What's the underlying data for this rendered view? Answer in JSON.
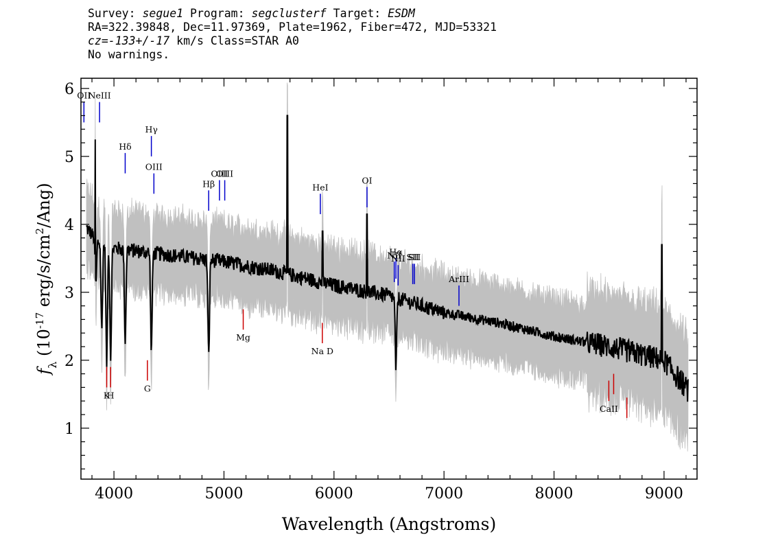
{
  "header": {
    "line1": {
      "survey_label": "Survey: ",
      "survey": "segue1",
      "program_label": " Program: ",
      "program": "segclusterf",
      "target_label": " Target: ",
      "target": "ESDM"
    },
    "line2": "RA=322.39848, Dec=11.97369, Plate=1962, Fiber=472, MJD=53321",
    "line3": {
      "cz": "cz=-133+/-17",
      "rest": " km/s Class=STAR A0"
    },
    "line4": "No warnings."
  },
  "chart_data": {
    "type": "line",
    "title": "",
    "xlabel": "Wavelength (Angstroms)",
    "ylabel": "f_λ (10^-17 erg/s/cm^2/Ang)",
    "xlim": [
      3700,
      9300
    ],
    "ylim": [
      0.25,
      6.15
    ],
    "x_ticks": [
      4000,
      5000,
      6000,
      7000,
      8000,
      9000
    ],
    "y_ticks": [
      1,
      2,
      3,
      4,
      5,
      6
    ],
    "grid": false,
    "colors": {
      "flux": "#000000",
      "error": "#c0c0c0",
      "emission": "#0000cc",
      "absorption": "#cc0000"
    },
    "continuum": [
      [
        3750,
        3.95
      ],
      [
        3850,
        3.75
      ],
      [
        4000,
        3.65
      ],
      [
        4500,
        3.55
      ],
      [
        5000,
        3.45
      ],
      [
        5500,
        3.3
      ],
      [
        6000,
        3.1
      ],
      [
        6500,
        2.95
      ],
      [
        7000,
        2.7
      ],
      [
        7500,
        2.55
      ],
      [
        8000,
        2.35
      ],
      [
        8500,
        2.2
      ],
      [
        9000,
        2.0
      ],
      [
        9220,
        1.55
      ]
    ],
    "absorption_features": [
      {
        "x": 3835,
        "y": 3.1
      },
      {
        "x": 3889,
        "y": 2.45
      },
      {
        "x": 3934,
        "y": 1.95
      },
      {
        "x": 3970,
        "y": 2.05
      },
      {
        "x": 4102,
        "y": 2.3
      },
      {
        "x": 4340,
        "y": 2.15
      },
      {
        "x": 4861,
        "y": 2.05
      },
      {
        "x": 6563,
        "y": 1.9
      }
    ],
    "spikes": [
      {
        "x": 3830,
        "y": 5.25
      },
      {
        "x": 5577,
        "y": 5.6
      },
      {
        "x": 5895,
        "y": 3.9
      },
      {
        "x": 6300,
        "y": 4.15
      },
      {
        "x": 8980,
        "y": 3.7
      }
    ],
    "emission_lines": [
      {
        "label": "OII",
        "x": 3727,
        "y0": 5.5,
        "y1": 5.8
      },
      {
        "label": "NeIII",
        "x": 3869,
        "y0": 5.5,
        "y1": 5.8
      },
      {
        "label": "Hδ",
        "x": 4102,
        "y0": 4.75,
        "y1": 5.05
      },
      {
        "label": "Hγ",
        "x": 4340,
        "y0": 5.0,
        "y1": 5.3
      },
      {
        "label": "OIII",
        "x": 4363,
        "y0": 4.45,
        "y1": 4.75
      },
      {
        "label": "Hβ",
        "x": 4861,
        "y0": 4.2,
        "y1": 4.5
      },
      {
        "label": "OIII",
        "x": 4959,
        "y0": 4.35,
        "y1": 4.65
      },
      {
        "label": "OIII",
        "x": 5007,
        "y0": 4.35,
        "y1": 4.65
      },
      {
        "label": "HeI",
        "x": 5876,
        "y0": 4.15,
        "y1": 4.45
      },
      {
        "label": "OI",
        "x": 6300,
        "y0": 4.25,
        "y1": 4.55
      },
      {
        "label": "NII",
        "x": 6548,
        "y0": 3.15,
        "y1": 3.45
      },
      {
        "label": "Hα",
        "x": 6563,
        "y0": 3.2,
        "y1": 3.5
      },
      {
        "label": "NII",
        "x": 6583,
        "y0": 3.1,
        "y1": 3.4
      },
      {
        "label": "SII",
        "x": 6716,
        "y0": 3.12,
        "y1": 3.42
      },
      {
        "label": "SII",
        "x": 6731,
        "y0": 3.12,
        "y1": 3.42
      },
      {
        "label": "ArIII",
        "x": 7136,
        "y0": 2.8,
        "y1": 3.1
      }
    ],
    "absorption_lines": [
      {
        "label": "K",
        "x": 3934,
        "y0": 1.6,
        "y1": 1.9
      },
      {
        "label": "H",
        "x": 3969,
        "y0": 1.6,
        "y1": 1.9
      },
      {
        "label": "G",
        "x": 4304,
        "y0": 1.7,
        "y1": 2.0
      },
      {
        "label": "Mg",
        "x": 5175,
        "y0": 2.45,
        "y1": 2.75
      },
      {
        "label": "Na D",
        "x": 5894,
        "y0": 2.25,
        "y1": 2.55
      },
      {
        "label": "CaII",
        "x": 8498,
        "y0": 1.4,
        "y1": 1.7
      },
      {
        "label": "CaII",
        "x": 8542,
        "y0": 1.5,
        "y1": 1.8
      },
      {
        "label": "CaII",
        "x": 8662,
        "y0": 1.15,
        "y1": 1.45
      }
    ]
  }
}
